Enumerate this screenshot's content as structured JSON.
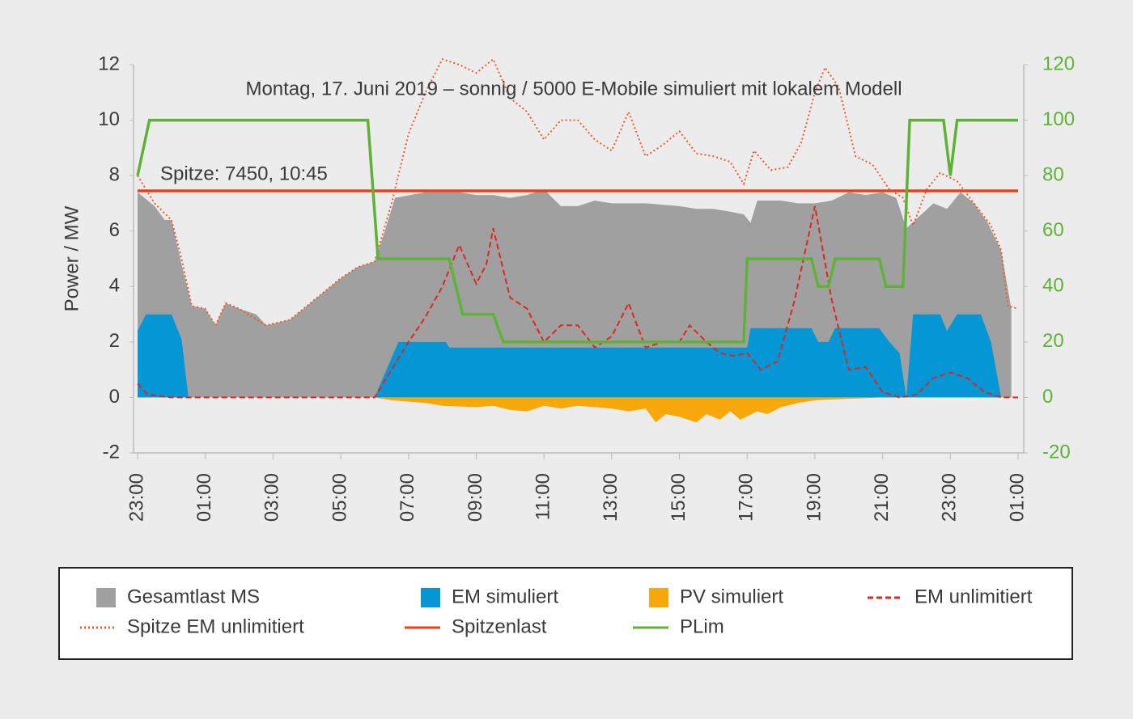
{
  "chart_data": {
    "type": "line",
    "title": "Montag, 17. Juni 2019 – sonnig / 5000 E-Mobile simuliert mit lokalem Modell",
    "annotation": "Spitze: 7450, 10:45",
    "y_label": "Power / MW",
    "xlim": [
      0,
      26
    ],
    "xticks": [
      {
        "value": 0,
        "label": "23:00"
      },
      {
        "value": 2,
        "label": "01:00"
      },
      {
        "value": 4,
        "label": "03:00"
      },
      {
        "value": 6,
        "label": "05:00"
      },
      {
        "value": 8,
        "label": "07:00"
      },
      {
        "value": 10,
        "label": "09:00"
      },
      {
        "value": 12,
        "label": "11:00"
      },
      {
        "value": 14,
        "label": "13:00"
      },
      {
        "value": 16,
        "label": "15:00"
      },
      {
        "value": 18,
        "label": "17:00"
      },
      {
        "value": 20,
        "label": "19:00"
      },
      {
        "value": 22,
        "label": "21:00"
      },
      {
        "value": 24,
        "label": "23:00"
      },
      {
        "value": 26,
        "label": "01:00"
      }
    ],
    "ylim": [
      -2,
      12
    ],
    "yticks": [
      -2,
      0,
      2,
      4,
      6,
      8,
      10,
      12
    ],
    "y2lim": [
      -20,
      120
    ],
    "y2ticks": [
      -20,
      0,
      20,
      40,
      60,
      80,
      100,
      120
    ],
    "y2_color": "#5db335",
    "series": [
      {
        "name": "Gesamtlast MS",
        "style": "area",
        "color": "#a0a0a0",
        "x": [
          0,
          0.5,
          0.8,
          1.0,
          1.3,
          1.6,
          2.0,
          2.3,
          2.6,
          3.0,
          3.5,
          3.8,
          4.5,
          5.0,
          5.5,
          6.0,
          6.5,
          7.0,
          7.3,
          7.6,
          8.5,
          9.5,
          10.0,
          10.5,
          11.0,
          11.5,
          12.0,
          12.5,
          13.0,
          13.5,
          14.0,
          15.0,
          16.0,
          16.5,
          17.0,
          17.5,
          17.9,
          18.1,
          18.3,
          19.0,
          19.5,
          20.0,
          20.5,
          21.0,
          21.5,
          22.0,
          22.4,
          22.7,
          23.5,
          23.9,
          24.3,
          24.7,
          25.1,
          25.5,
          25.8
        ],
        "values": [
          7.4,
          6.9,
          6.4,
          6.4,
          4.8,
          3.3,
          3.2,
          2.6,
          3.4,
          3.2,
          3.0,
          2.6,
          2.8,
          3.3,
          3.8,
          4.3,
          4.7,
          4.9,
          6.0,
          7.2,
          7.4,
          7.4,
          7.3,
          7.3,
          7.2,
          7.3,
          7.5,
          6.9,
          6.9,
          7.1,
          7.0,
          7.0,
          6.9,
          6.8,
          6.8,
          6.7,
          6.6,
          6.3,
          7.1,
          7.1,
          7.0,
          7.0,
          7.1,
          7.4,
          7.3,
          7.4,
          7.2,
          6.1,
          7.0,
          6.8,
          7.4,
          7.0,
          6.3,
          5.3,
          3.2
        ]
      },
      {
        "name": "EM simuliert",
        "style": "area",
        "color": "#0596d6",
        "x": [
          0,
          0.25,
          1.0,
          1.3,
          1.5,
          7.0,
          7.7,
          9.1,
          9.2,
          18.0,
          18.1,
          19.9,
          20.1,
          20.4,
          20.6,
          21.9,
          22.2,
          22.5,
          22.7,
          22.9,
          23.7,
          23.9,
          24.2,
          24.9,
          25.2,
          25.5
        ],
        "values": [
          2.4,
          3.0,
          3.0,
          2.1,
          0,
          0,
          2.0,
          2.0,
          1.8,
          1.8,
          2.5,
          2.5,
          2.0,
          2.0,
          2.5,
          2.5,
          2.0,
          1.6,
          0,
          3.0,
          3.0,
          2.4,
          3.0,
          3.0,
          2.0,
          0
        ]
      },
      {
        "name": "PV simuliert",
        "style": "area",
        "color": "#f7a80a",
        "x": [
          0,
          7.0,
          7.5,
          8.5,
          9.0,
          10.0,
          10.5,
          11.0,
          11.5,
          12.0,
          12.5,
          13.0,
          13.5,
          14.0,
          14.5,
          15.0,
          15.3,
          15.6,
          16.0,
          16.5,
          16.8,
          17.2,
          17.5,
          17.8,
          18.3,
          18.6,
          19.0,
          19.5,
          20.0,
          21.0,
          22.0,
          26.0
        ],
        "values": [
          0,
          0,
          -0.1,
          -0.2,
          -0.3,
          -0.35,
          -0.3,
          -0.45,
          -0.5,
          -0.3,
          -0.4,
          -0.3,
          -0.35,
          -0.4,
          -0.5,
          -0.4,
          -0.9,
          -0.6,
          -0.7,
          -0.9,
          -0.6,
          -0.8,
          -0.5,
          -0.8,
          -0.5,
          -0.6,
          -0.35,
          -0.2,
          -0.1,
          -0.05,
          0,
          0
        ]
      },
      {
        "name": "EM unlimitiert",
        "style": "line",
        "dash": "dashed",
        "color": "#e0261c",
        "x": [
          0,
          0.3,
          1.0,
          7.0,
          7.5,
          8.0,
          8.5,
          9.0,
          9.5,
          10.0,
          10.3,
          10.5,
          11.0,
          11.5,
          12.0,
          12.5,
          13.0,
          13.5,
          14.0,
          14.5,
          15.0,
          15.5,
          16.0,
          16.3,
          16.8,
          17.2,
          17.6,
          18.0,
          18.4,
          18.9,
          19.4,
          20.0,
          20.5,
          21.0,
          21.5,
          22.0,
          22.5,
          23.0,
          23.5,
          24.0,
          24.5,
          25.0,
          25.5,
          26.0
        ],
        "values": [
          0.5,
          0.1,
          0,
          0,
          1.0,
          2.0,
          2.9,
          4.0,
          5.5,
          4.1,
          4.8,
          6.1,
          3.6,
          3.2,
          2.0,
          2.6,
          2.6,
          1.8,
          2.2,
          3.4,
          1.8,
          2.0,
          2.0,
          2.6,
          2.0,
          1.6,
          1.5,
          1.6,
          1.0,
          1.3,
          3.5,
          6.9,
          3.5,
          1.0,
          1.1,
          0.2,
          0,
          0.1,
          0.7,
          0.9,
          0.7,
          0.2,
          0,
          0
        ]
      },
      {
        "name": "Spitze EM unlimitiert",
        "style": "line",
        "dash": "dotted",
        "color": "#f05a28",
        "x": [
          0,
          0.5,
          1.0,
          1.3,
          1.6,
          2.0,
          2.3,
          2.6,
          3.0,
          3.8,
          4.5,
          5.0,
          5.5,
          6.0,
          6.5,
          7.0,
          7.5,
          8.0,
          8.5,
          9.0,
          9.5,
          10.0,
          10.5,
          11.0,
          11.5,
          12.0,
          12.5,
          13.0,
          13.5,
          14.0,
          14.5,
          15.0,
          15.5,
          16.0,
          16.5,
          17.0,
          17.5,
          17.9,
          18.2,
          18.7,
          19.2,
          19.6,
          20.0,
          20.3,
          20.7,
          21.2,
          21.7,
          22.2,
          22.6,
          22.9,
          23.3,
          23.7,
          24.2,
          24.7,
          25.2,
          25.5,
          25.7,
          26.0
        ],
        "values": [
          8.0,
          7.0,
          6.4,
          5.0,
          3.3,
          3.2,
          2.6,
          3.4,
          3.2,
          2.6,
          2.8,
          3.3,
          3.8,
          4.3,
          4.7,
          4.9,
          7.0,
          9.5,
          11.0,
          12.2,
          12.0,
          11.7,
          12.2,
          10.8,
          10.3,
          9.3,
          10.0,
          10.0,
          9.3,
          8.9,
          10.3,
          8.7,
          9.1,
          9.6,
          8.8,
          8.7,
          8.5,
          7.7,
          8.9,
          8.2,
          8.3,
          9.2,
          11.0,
          11.9,
          11.2,
          8.7,
          8.4,
          7.5,
          7.2,
          6.2,
          7.5,
          8.1,
          7.8,
          7.0,
          6.2,
          5.3,
          3.3,
          3.2
        ]
      },
      {
        "name": "Spitzenlast",
        "style": "line",
        "color": "#e8401c",
        "x": [
          0,
          26
        ],
        "values": [
          7.45,
          7.45
        ]
      },
      {
        "name": "PLim",
        "style": "line",
        "color": "#5db335",
        "axis": "y2",
        "x": [
          0,
          0.35,
          6.8,
          7.1,
          9.2,
          9.6,
          10.5,
          10.8,
          17.9,
          18.0,
          19.9,
          20.1,
          20.4,
          20.6,
          21.9,
          22.1,
          22.6,
          22.8,
          23.8,
          24.0,
          24.2,
          26.0
        ],
        "values": [
          80,
          100,
          100,
          50,
          50,
          30,
          30,
          20,
          20,
          50,
          50,
          40,
          40,
          50,
          50,
          40,
          40,
          100,
          100,
          80,
          100,
          100
        ]
      }
    ]
  }
}
